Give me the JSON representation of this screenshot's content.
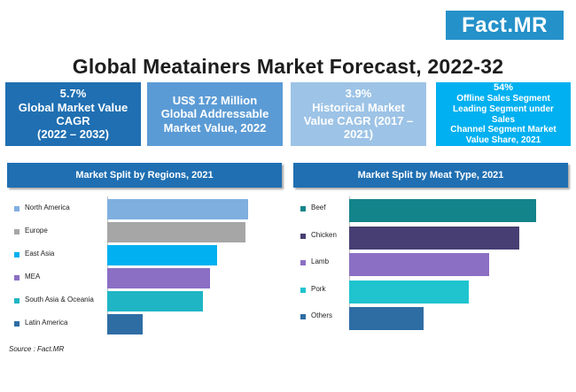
{
  "logo": "Fact.MR",
  "title": "Global Meatainers Market Forecast, 2022-32",
  "kpis": [
    {
      "lines": [
        "5.7%",
        "Global Market Value",
        "CAGR",
        "(2022 – 2032)"
      ],
      "color": "#1f6fb2"
    },
    {
      "lines": [
        "US$ 172 Million",
        "Global Addressable",
        "Market Value, 2022"
      ],
      "color": "#5b9bd5"
    },
    {
      "lines": [
        "3.9%",
        "Historical Market",
        "Value CAGR (2017 –",
        "2021)"
      ],
      "color": "#9dc3e6"
    },
    {
      "lines": [
        "54%",
        "Offline Sales Segment",
        "Leading Segment under Sales",
        "Channel Segment Market",
        "Value Share, 2021"
      ],
      "color": "#00b0f0"
    }
  ],
  "chart_data": [
    {
      "type": "bar",
      "orientation": "horizontal",
      "title": "Market Split by Regions, 2021",
      "categories": [
        "North America",
        "Europe",
        "East Asia",
        "MEA",
        "South Asia & Oceania",
        "Latin America"
      ],
      "values": [
        100,
        98,
        78,
        73,
        68,
        25
      ],
      "colors": [
        "#7fafdf",
        "#a6a6a6",
        "#00b0f0",
        "#8b6fc4",
        "#1fb5c5",
        "#2e6da4"
      ],
      "legend": "left"
    },
    {
      "type": "bar",
      "orientation": "horizontal",
      "title": "Market Split by Meat Type, 2021",
      "categories": [
        "Beef",
        "Chicken",
        "Lamb",
        "Pork",
        "Others"
      ],
      "values": [
        100,
        91,
        75,
        64,
        40
      ],
      "colors": [
        "#13848a",
        "#473f73",
        "#8b6fc4",
        "#1fc4cf",
        "#2e6da4"
      ],
      "legend": "left"
    }
  ],
  "source": "Source : Fact.MR"
}
